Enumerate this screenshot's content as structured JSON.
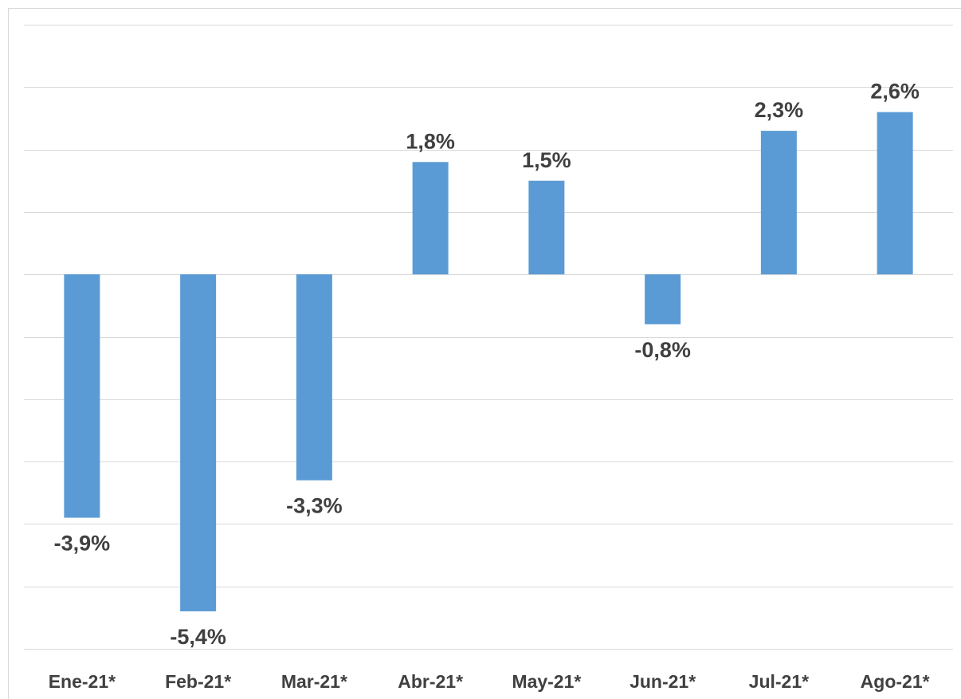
{
  "chart_data": {
    "type": "bar",
    "categories": [
      "Ene-21*",
      "Feb-21*",
      "Mar-21*",
      "Abr-21*",
      "May-21*",
      "Jun-21*",
      "Jul-21*",
      "Ago-21*"
    ],
    "values": [
      -3.9,
      -5.4,
      -3.3,
      1.8,
      1.5,
      -0.8,
      2.3,
      2.6
    ],
    "value_labels": [
      "-3,9%",
      "-5,4%",
      "-3,3%",
      "1,8%",
      "1,5%",
      "-0,8%",
      "2,3%",
      "2,6%"
    ],
    "color": "#5b9bd5",
    "ylim": [
      -6,
      4
    ],
    "yticks": [
      -6,
      -5,
      -4,
      -3,
      -2,
      -1,
      0,
      1,
      2,
      3,
      4
    ],
    "grid": true
  }
}
